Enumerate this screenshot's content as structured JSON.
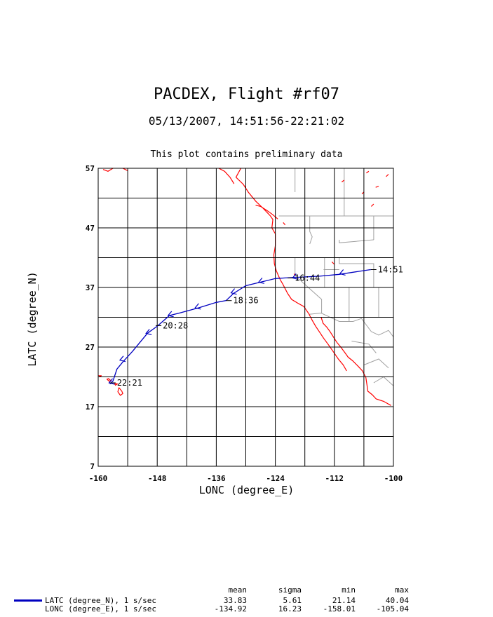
{
  "header": {
    "title": "PACDEX, Flight #rf07",
    "subtitle": "05/13/2007, 14:51:56-22:21:02",
    "note": "This plot contains preliminary data"
  },
  "chart_data": {
    "type": "line",
    "xlabel": "LONC (degree_E)",
    "ylabel": "LATC (degree_N)",
    "xlim": [
      -160,
      -100
    ],
    "ylim": [
      7,
      57
    ],
    "xticks": [
      -160,
      -148,
      -136,
      -124,
      -112,
      -100
    ],
    "yticks": [
      7,
      17,
      27,
      37,
      47,
      57
    ],
    "grid": true,
    "track_color": "#0000c0",
    "coast_color": "#ff0000",
    "border_color": "#a0a0a0",
    "track": [
      [
        -104.6,
        40.0
      ],
      [
        -107.0,
        39.7
      ],
      [
        -111.0,
        39.2
      ],
      [
        -115.0,
        38.9
      ],
      [
        -119.5,
        38.7
      ],
      [
        -122.0,
        38.6
      ],
      [
        -124.0,
        38.5
      ],
      [
        -127.0,
        37.9
      ],
      [
        -130.0,
        37.3
      ],
      [
        -132.5,
        36.0
      ],
      [
        -134.0,
        34.8
      ],
      [
        -136.0,
        34.5
      ],
      [
        -139.5,
        33.6
      ],
      [
        -143.5,
        32.7
      ],
      [
        -145.5,
        32.3
      ],
      [
        -148.0,
        30.5
      ],
      [
        -150.0,
        29.3
      ],
      [
        -153.0,
        26.3
      ],
      [
        -155.0,
        24.5
      ],
      [
        -156.2,
        23.3
      ],
      [
        -157.0,
        21.3
      ],
      [
        -157.6,
        20.8
      ]
    ],
    "time_labels": [
      {
        "text": "14:51",
        "lon": -104.6,
        "lat": 40.0
      },
      {
        "text": "16:44",
        "lon": -121.5,
        "lat": 38.6
      },
      {
        "text": "18:36",
        "lon": -134.0,
        "lat": 34.8
      },
      {
        "text": "20:28",
        "lon": -148.3,
        "lat": 30.6
      },
      {
        "text": "22:21",
        "lon": -157.6,
        "lat": 21.0
      }
    ],
    "direction_marks": [
      [
        -110.6,
        39.3
      ],
      [
        -120.2,
        38.6
      ],
      [
        -127.1,
        37.9
      ],
      [
        -132.7,
        36.1
      ],
      [
        -140.0,
        33.6
      ],
      [
        -145.5,
        32.3
      ],
      [
        -150.0,
        29.3
      ],
      [
        -155.3,
        24.8
      ],
      [
        -157.5,
        21.0
      ]
    ]
  },
  "legend": {
    "headers": [
      "mean",
      "sigma",
      "min",
      "max"
    ],
    "rows": [
      {
        "label": "LATC (degree_N), 1 s/sec",
        "mean": "33.83",
        "sigma": "5.61",
        "min": "21.14",
        "max": "40.04"
      },
      {
        "label": "LONC (degree_E), 1 s/sec",
        "mean": "-134.92",
        "sigma": "16.23",
        "min": "-158.01",
        "max": "-105.04"
      }
    ]
  }
}
